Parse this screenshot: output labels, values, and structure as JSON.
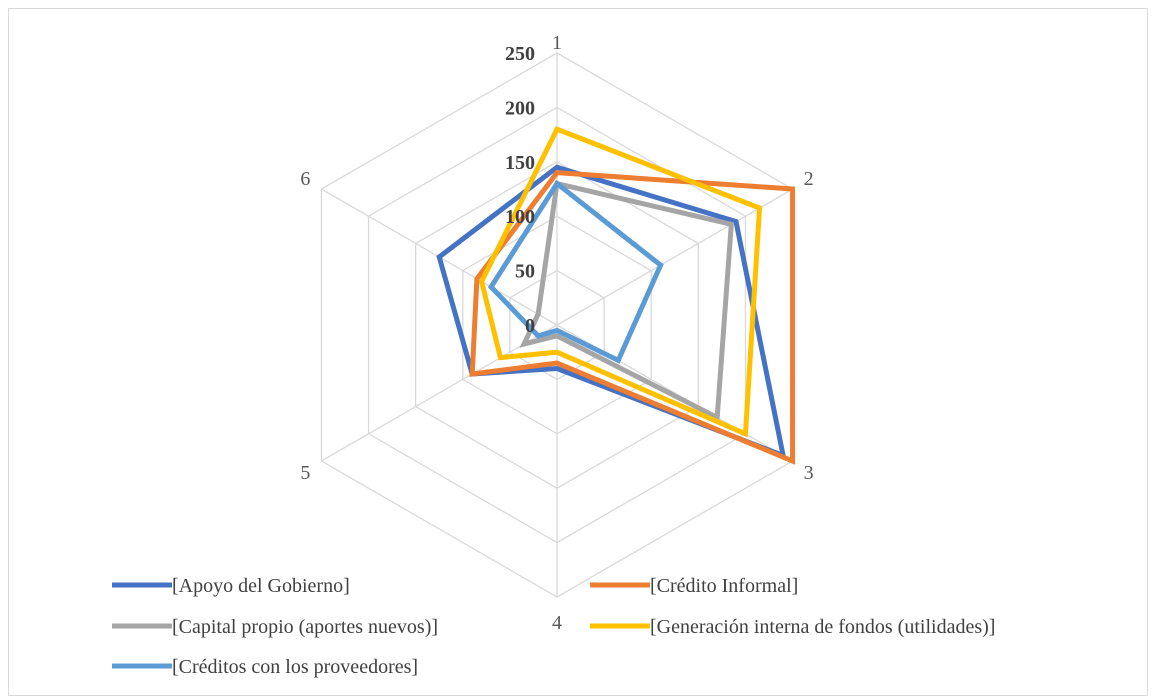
{
  "chart_data": {
    "type": "radar",
    "categories": [
      "1",
      "2",
      "3",
      "4",
      "5",
      "6"
    ],
    "ticks": [
      "0",
      "50",
      "100",
      "150",
      "200",
      "250"
    ],
    "rlim": [
      0,
      250
    ],
    "grid": true,
    "legend_position": "bottom",
    "series": [
      {
        "name": "[Apoyo del Gobierno]",
        "color": "#4472C4",
        "values": [
          145,
          190,
          240,
          40,
          90,
          125
        ]
      },
      {
        "name": "[Crédito Informal]",
        "color": "#ED7D31",
        "values": [
          140,
          250,
          250,
          35,
          90,
          85
        ]
      },
      {
        "name": "[Capital propio (aportes nuevos)]",
        "color": "#A5A5A5",
        "values": [
          130,
          185,
          170,
          10,
          35,
          20
        ]
      },
      {
        "name": "[Generación interna de fondos (utilidades)]",
        "color": "#FFC000",
        "values": [
          180,
          215,
          200,
          25,
          60,
          80
        ]
      },
      {
        "name": "[Créditos con los proveedores]",
        "color": "#5B9BD5",
        "values": [
          130,
          110,
          65,
          5,
          20,
          70
        ]
      }
    ]
  }
}
